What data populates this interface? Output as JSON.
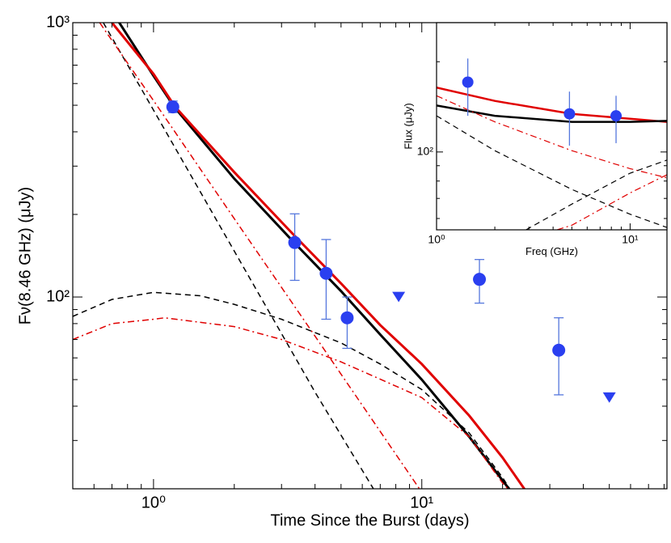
{
  "chart_data": [
    {
      "type": "line",
      "xlabel": "Time Since the Burst  (days)",
      "ylabel": "Fν(8.46 GHz)  (μJy)",
      "xscale": "log",
      "yscale": "log",
      "xlim": [
        0.5,
        82
      ],
      "ylim": [
        20,
        1000
      ],
      "xticks": [
        {
          "value": 1,
          "label": "10⁰"
        },
        {
          "value": 10,
          "label": "10¹"
        }
      ],
      "xminorticks": [
        0.6,
        0.7,
        0.8,
        0.9,
        2,
        3,
        4,
        5,
        6,
        7,
        8,
        9,
        20,
        30,
        40,
        50,
        60,
        70,
        80
      ],
      "yticks": [
        {
          "value": 100,
          "label": "10²"
        },
        {
          "value": 1000,
          "label": "10³"
        }
      ],
      "yminorticks": [
        30,
        40,
        50,
        60,
        70,
        80,
        90,
        200,
        300,
        400,
        500,
        600,
        700,
        800,
        900
      ],
      "series": [
        {
          "color": "#000000",
          "linestyle": "solid",
          "width": 3,
          "x": [
            0.7,
            1,
            1.2,
            2,
            3.3,
            5,
            7,
            10,
            15,
            22
          ],
          "values": [
            1100,
            640,
            490,
            270,
            160,
            105,
            73,
            50,
            31,
            19
          ]
        },
        {
          "color": "#e00000",
          "linestyle": "solid",
          "width": 3,
          "x": [
            0.7,
            1,
            1.2,
            2,
            3.3,
            5,
            7,
            10,
            15,
            20,
            25
          ],
          "values": [
            1000,
            650,
            495,
            285,
            170,
            112,
            79,
            57,
            37,
            26,
            19
          ]
        },
        {
          "color": "#000000",
          "linestyle": "dashed",
          "width": 1.5,
          "x": [
            0.65,
            1,
            2,
            4,
            6.6,
            7.5
          ],
          "values": [
            1000,
            480,
            147,
            45,
            20,
            16
          ]
        },
        {
          "color": "#e00000",
          "linestyle": "dashdot",
          "width": 1.5,
          "x": [
            0.63,
            1,
            2,
            4,
            9.8,
            11
          ],
          "values": [
            1000,
            520,
            193,
            72,
            20,
            17
          ]
        },
        {
          "color": "#000000",
          "linestyle": "dashed",
          "width": 1.5,
          "x": [
            0.5,
            0.7,
            1,
            1.5,
            2,
            3,
            5,
            7,
            10,
            15,
            20,
            22
          ],
          "values": [
            85,
            98,
            104,
            101,
            94,
            83,
            68,
            57,
            46,
            32,
            22,
            19
          ]
        },
        {
          "color": "#e00000",
          "linestyle": "dashdot",
          "width": 1.5,
          "x": [
            0.5,
            0.7,
            1,
            1.1,
            2,
            3,
            5,
            10,
            15,
            20,
            22
          ],
          "values": [
            70,
            80,
            83,
            84,
            78,
            70,
            58,
            43,
            31,
            21,
            19
          ]
        },
        {
          "color": "#2a3ff0",
          "marker": "circle",
          "errcolor": "#5577dd",
          "x": [
            1.18,
            3.36,
            4.4,
            5.27,
            16.4,
            32.4
          ],
          "values": [
            493,
            158,
            122,
            84,
            116,
            64
          ],
          "lower": [
            470,
            115,
            83,
            65,
            95,
            44
          ],
          "upper": [
            518,
            201,
            162,
            100,
            137,
            84
          ]
        },
        {
          "color": "#2a3ff0",
          "marker": "triangle-down",
          "x": [
            8.2,
            50
          ],
          "values": [
            100,
            43
          ]
        }
      ]
    },
    {
      "type": "line",
      "xlabel": "Freq  (GHz)",
      "ylabel": "Flux  (μJy)",
      "xscale": "log",
      "yscale": "log",
      "xlim": [
        1,
        15.5
      ],
      "ylim": [
        55,
        270
      ],
      "xticks": [
        {
          "value": 1,
          "label": "10⁰"
        },
        {
          "value": 10,
          "label": "10¹"
        }
      ],
      "xminorticks": [
        2,
        3,
        4,
        5,
        6,
        7,
        8,
        9
      ],
      "yticks": [
        {
          "value": 100,
          "label": "10²"
        }
      ],
      "yminorticks": [
        60,
        70,
        80,
        90,
        200
      ],
      "series": [
        {
          "color": "#e00000",
          "linestyle": "solid",
          "width": 2.5,
          "x": [
            1,
            2,
            5,
            10,
            15.5
          ],
          "values": [
            164,
            148,
            134,
            129,
            126
          ]
        },
        {
          "color": "#000000",
          "linestyle": "solid",
          "width": 2.5,
          "x": [
            1,
            2,
            5,
            10,
            15.5
          ],
          "values": [
            143,
            132,
            126,
            126,
            127
          ]
        },
        {
          "color": "#e00000",
          "linestyle": "dashdot",
          "width": 1.2,
          "x": [
            1,
            2,
            5,
            10,
            15.5
          ],
          "values": [
            154,
            126,
            101,
            88,
            82
          ]
        },
        {
          "color": "#000000",
          "linestyle": "dashed",
          "width": 1.2,
          "x": [
            1,
            2,
            5,
            10,
            15.5
          ],
          "values": [
            132,
            101,
            75,
            62,
            56
          ]
        },
        {
          "color": "#000000",
          "linestyle": "dashed",
          "width": 1.2,
          "x": [
            2.9,
            5,
            10,
            15.5
          ],
          "values": [
            55,
            67,
            85,
            94
          ]
        },
        {
          "color": "#e00000",
          "linestyle": "dashdot",
          "width": 1.2,
          "x": [
            4.2,
            5,
            10,
            15.5
          ],
          "values": [
            55,
            57,
            73,
            84
          ]
        },
        {
          "color": "#2a3ff0",
          "marker": "circle",
          "errcolor": "#5577dd",
          "x": [
            1.45,
            4.86,
            8.46
          ],
          "values": [
            171,
            134,
            132
          ],
          "lower": [
            132,
            105,
            107
          ],
          "upper": [
            205,
            159,
            154
          ]
        }
      ]
    }
  ]
}
